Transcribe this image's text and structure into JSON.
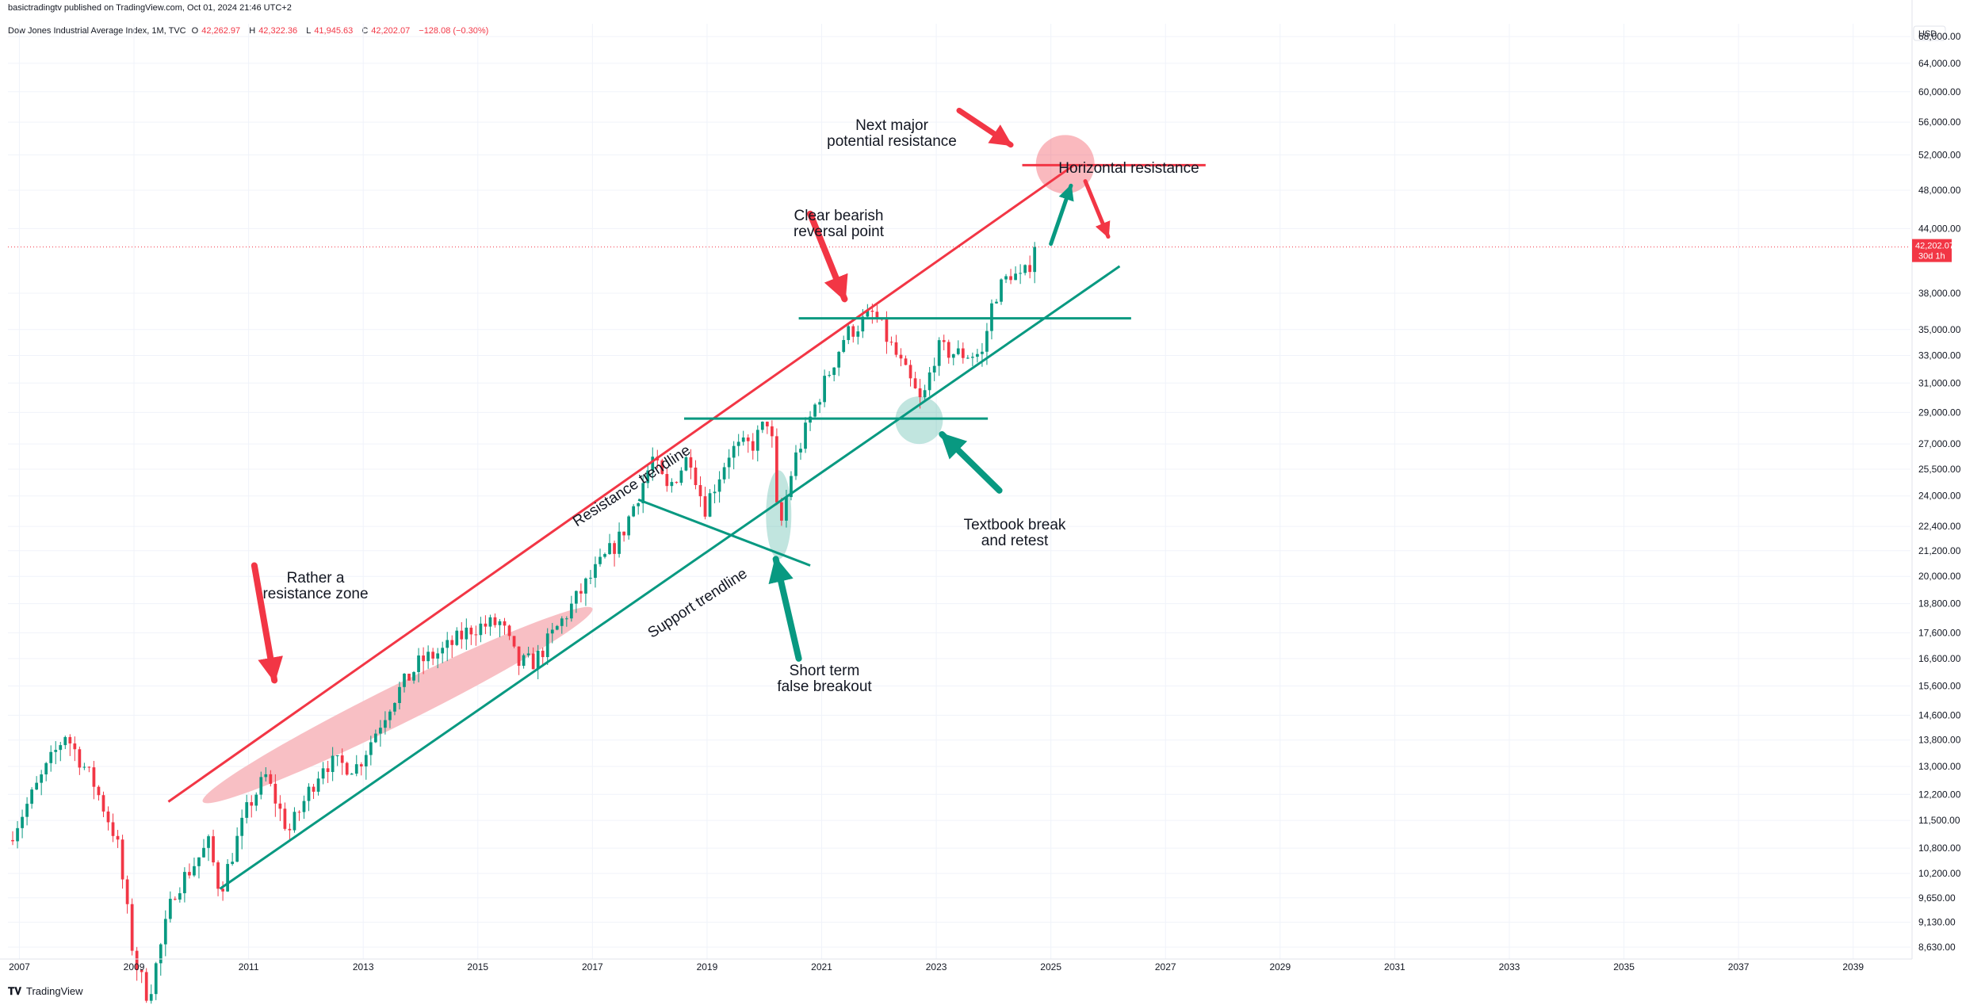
{
  "header": {
    "published": "basictradingtv published on TradingView.com, Oct 01, 2024 21:46 UTC+2",
    "symbol": "Dow Jones Industrial Average Index, 1M, TVC",
    "open_label": "O",
    "open": "42,262.97",
    "high_label": "H",
    "high": "42,322.36",
    "low_label": "L",
    "low": "41,945.63",
    "close_label": "C",
    "close": "42,202.07",
    "change": "−128.08 (−0.30%)"
  },
  "footer": {
    "logo_icon": "tradingview-logo-icon",
    "brand": "TradingView"
  },
  "colors": {
    "up": "#089981",
    "down": "#f23645",
    "support": "#089981",
    "resistance": "#f23645",
    "zone": "#f8bfc4",
    "grid": "#f0f3fa"
  },
  "chart_data": {
    "type": "candlestick",
    "title": "Dow Jones Industrial Average Index, 1M, TVC",
    "currency_label": "USD",
    "y_scale": "log",
    "ylim": [
      8400,
      70000
    ],
    "xlim": [
      2006.8,
      2040.0
    ],
    "x_ticks": [
      "2007",
      "2009",
      "2011",
      "2013",
      "2015",
      "2017",
      "2019",
      "2021",
      "2023",
      "2025",
      "2027",
      "2029",
      "2031",
      "2033",
      "2035",
      "2037",
      "2039"
    ],
    "y_ticks": [
      "68,000.00",
      "64,000.00",
      "60,000.00",
      "56,000.00",
      "52,000.00",
      "48,000.00",
      "44,000.00",
      "38,000.00",
      "35,000.00",
      "33,000.00",
      "31,000.00",
      "29,000.00",
      "27,000.00",
      "25,500.00",
      "24,000.00",
      "22,400.00",
      "21,200.00",
      "20,000.00",
      "18,800.00",
      "17,600.00",
      "16,600.00",
      "15,600.00",
      "14,600.00",
      "13,800.00",
      "13,000.00",
      "12,200.00",
      "11,500.00",
      "10,800.00",
      "10,200.00",
      "9,650.00",
      "9,130.00",
      "8,630.00"
    ],
    "last_price": {
      "value": 42202.07,
      "label": "42,202.07",
      "countdown": "30d 1h"
    },
    "candle_path": [
      [
        2006.8,
        11000
      ],
      [
        2007.8,
        14000
      ],
      [
        2008.3,
        12500
      ],
      [
        2008.7,
        11000
      ],
      [
        2009.0,
        8400
      ],
      [
        2009.25,
        7700
      ],
      [
        2009.7,
        9800
      ],
      [
        2010.3,
        10900
      ],
      [
        2010.5,
        9800
      ],
      [
        2011.0,
        11900
      ],
      [
        2011.3,
        12700
      ],
      [
        2011.7,
        11200
      ],
      [
        2012.3,
        13100
      ],
      [
        2012.9,
        13000
      ],
      [
        2013.5,
        15100
      ],
      [
        2014.0,
        16500
      ],
      [
        2014.4,
        16900
      ],
      [
        2014.9,
        17800
      ],
      [
        2015.4,
        18000
      ],
      [
        2015.7,
        16400
      ],
      [
        2016.0,
        16500
      ],
      [
        2016.9,
        19700
      ],
      [
        2017.5,
        21900
      ],
      [
        2018.05,
        26100
      ],
      [
        2018.3,
        24300
      ],
      [
        2018.7,
        26400
      ],
      [
        2018.95,
        23300
      ],
      [
        2019.4,
        26600
      ],
      [
        2019.8,
        27000
      ],
      [
        2020.1,
        28800
      ],
      [
        2020.25,
        21900
      ],
      [
        2020.5,
        25800
      ],
      [
        2020.9,
        29600
      ],
      [
        2021.4,
        34500
      ],
      [
        2021.9,
        36300
      ],
      [
        2022.3,
        33000
      ],
      [
        2022.75,
        29500
      ],
      [
        2023.0,
        33500
      ],
      [
        2023.4,
        33100
      ],
      [
        2023.8,
        33100
      ],
      [
        2024.0,
        37700
      ],
      [
        2024.3,
        39800
      ],
      [
        2024.5,
        39100
      ],
      [
        2024.75,
        42200
      ]
    ],
    "annotations": [
      {
        "text": [
          "Next major",
          "potential resistance"
        ]
      },
      {
        "text": [
          "Horizontal resistance"
        ]
      },
      {
        "text": [
          "Clear bearish",
          "reversal point"
        ]
      },
      {
        "text": [
          "Resistance trendline"
        ]
      },
      {
        "text": [
          "Support trendline"
        ]
      },
      {
        "text": [
          "Rather a",
          "resistance zone"
        ]
      },
      {
        "text": [
          "Short term",
          "false breakout"
        ]
      },
      {
        "text": [
          "Textbook break",
          "and retest"
        ]
      }
    ],
    "lines": [
      {
        "name": "resistance-trendline",
        "color": "resistance",
        "from": [
          2009.6,
          12000
        ],
        "to": [
          2025.4,
          50800
        ]
      },
      {
        "name": "support-trendline",
        "color": "support",
        "from": [
          2010.5,
          9850
        ],
        "to": [
          2026.2,
          40400
        ]
      },
      {
        "name": "horizontal-resistance-line",
        "color": "resistance",
        "from": [
          2024.5,
          50800
        ],
        "to": [
          2027.7,
          50800
        ]
      },
      {
        "name": "support-level-35900",
        "color": "support",
        "from": [
          2020.6,
          35900
        ],
        "to": [
          2026.4,
          35900
        ]
      },
      {
        "name": "support-level-28600",
        "color": "support",
        "from": [
          2018.6,
          28600
        ],
        "to": [
          2023.9,
          28600
        ]
      },
      {
        "name": "minor-downtrend-line",
        "color": "support",
        "from": [
          2017.8,
          23800
        ],
        "to": [
          2020.8,
          20500
        ]
      }
    ]
  }
}
